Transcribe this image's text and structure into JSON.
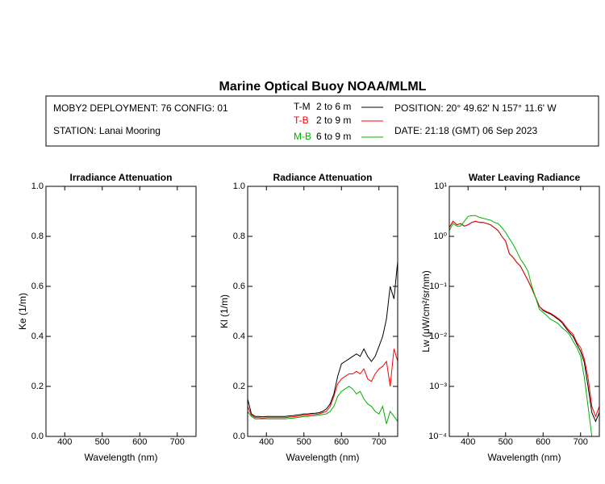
{
  "title": "Marine Optical Buoy NOAA/MLML",
  "info": {
    "deployment": "MOBY2 DEPLOYMENT: 76 CONFIG: 01",
    "station": "STATION: Lanai Mooring",
    "position": "POSITION: 20° 49.62' N   157° 11.6' W",
    "date": "DATE: 21:18 (GMT) 06 Sep 2023"
  },
  "legend": [
    {
      "label": "T-M",
      "text": "2 to 6 m",
      "color": "#000000"
    },
    {
      "label": "T-B",
      "text": "2 to 9 m",
      "color": "#ff0000"
    },
    {
      "label": "M-B",
      "text": "6 to 9 m",
      "color": "#00b000"
    }
  ],
  "chart_data": [
    {
      "type": "line",
      "title": "Irradiance Attenuation",
      "x_label": "Wavelength (nm)",
      "y_label": "Ke  (1/m)",
      "xlim": [
        350,
        750
      ],
      "xticks": [
        400,
        500,
        600,
        700
      ],
      "ylim": [
        0,
        1
      ],
      "yticks": [
        {
          "value": 0,
          "label": "0.0"
        },
        0.2,
        0.4,
        0.6,
        0.8,
        {
          "value": 1,
          "label": "1.0"
        }
      ],
      "x": [],
      "series": []
    },
    {
      "type": "line",
      "title": "Radiance Attenuation",
      "x_label": "Wavelength (nm)",
      "y_label": "Kl  (1/m)",
      "xlim": [
        350,
        750
      ],
      "xticks": [
        400,
        500,
        600,
        700
      ],
      "ylim": [
        0,
        1
      ],
      "yticks": [
        {
          "value": 0,
          "label": "0.0"
        },
        0.2,
        0.4,
        0.6,
        0.8,
        {
          "value": 1,
          "label": "1.0"
        }
      ],
      "x": [
        350,
        360,
        370,
        380,
        390,
        400,
        410,
        420,
        430,
        440,
        450,
        460,
        470,
        480,
        490,
        500,
        510,
        520,
        530,
        540,
        550,
        560,
        570,
        580,
        590,
        600,
        610,
        620,
        630,
        640,
        650,
        660,
        670,
        680,
        690,
        700,
        710,
        720,
        730,
        740,
        750
      ],
      "series": [
        {
          "color": "#000000",
          "values": [
            0.15,
            0.09,
            0.08,
            0.08,
            0.078,
            0.08,
            0.08,
            0.08,
            0.08,
            0.08,
            0.08,
            0.082,
            0.083,
            0.085,
            0.087,
            0.09,
            0.09,
            0.092,
            0.093,
            0.095,
            0.1,
            0.11,
            0.13,
            0.17,
            0.24,
            0.29,
            0.3,
            0.31,
            0.32,
            0.33,
            0.32,
            0.35,
            0.32,
            0.3,
            0.32,
            0.36,
            0.4,
            0.47,
            0.6,
            0.55,
            0.7
          ]
        },
        {
          "color": "#ff0000",
          "values": [
            0.12,
            0.085,
            0.075,
            0.075,
            0.073,
            0.075,
            0.075,
            0.075,
            0.075,
            0.075,
            0.075,
            0.077,
            0.078,
            0.08,
            0.082,
            0.085,
            0.085,
            0.087,
            0.088,
            0.09,
            0.095,
            0.1,
            0.12,
            0.16,
            0.21,
            0.23,
            0.24,
            0.25,
            0.25,
            0.26,
            0.25,
            0.27,
            0.23,
            0.22,
            0.25,
            0.27,
            0.28,
            0.3,
            0.2,
            0.35,
            0.3
          ]
        },
        {
          "color": "#00b000",
          "values": [
            0.1,
            0.08,
            0.07,
            0.07,
            0.07,
            0.07,
            0.07,
            0.07,
            0.07,
            0.07,
            0.07,
            0.072,
            0.073,
            0.075,
            0.077,
            0.08,
            0.08,
            0.082,
            0.083,
            0.085,
            0.088,
            0.09,
            0.1,
            0.12,
            0.16,
            0.18,
            0.19,
            0.2,
            0.19,
            0.17,
            0.18,
            0.15,
            0.13,
            0.12,
            0.1,
            0.09,
            0.12,
            0.05,
            0.1,
            0.08,
            0.06
          ]
        }
      ]
    },
    {
      "type": "line",
      "title": "Water Leaving Radiance",
      "x_label": "Wavelength (nm)",
      "y_label": "Lw  (μW/cm²/sr/nm)",
      "log_y": true,
      "xlim": [
        350,
        750
      ],
      "xticks": [
        400,
        500,
        600,
        700
      ],
      "ylim": [
        0.0001,
        10
      ],
      "yticks": [
        {
          "value": 0.0001,
          "label": "10⁻⁴"
        },
        {
          "value": 0.001,
          "label": "10⁻³"
        },
        {
          "value": 0.01,
          "label": "10⁻²"
        },
        {
          "value": 0.1,
          "label": "10⁻¹"
        },
        {
          "value": 1,
          "label": "10⁰"
        },
        {
          "value": 10,
          "label": "10¹"
        }
      ],
      "x": [
        350,
        360,
        370,
        380,
        390,
        400,
        410,
        420,
        430,
        440,
        450,
        460,
        470,
        480,
        490,
        500,
        510,
        520,
        530,
        540,
        550,
        560,
        570,
        580,
        590,
        600,
        610,
        620,
        630,
        640,
        650,
        660,
        670,
        680,
        690,
        700,
        710,
        720,
        730,
        740,
        750
      ],
      "series": [
        {
          "color": "#000000",
          "values": [
            1.5,
            2,
            1.7,
            1.8,
            1.6,
            1.7,
            1.9,
            2.0,
            1.9,
            1.9,
            1.8,
            1.7,
            1.5,
            1.3,
            1.0,
            0.8,
            0.45,
            0.38,
            0.3,
            0.25,
            0.18,
            0.13,
            0.09,
            0.06,
            0.04,
            0.033,
            0.03,
            0.028,
            0.025,
            0.022,
            0.019,
            0.015,
            0.012,
            0.01,
            0.007,
            0.005,
            0.003,
            0.001,
            0.0003,
            0.0002,
            0.0003
          ]
        },
        {
          "color": "#ff0000",
          "values": [
            1.5,
            2,
            1.7,
            1.8,
            1.6,
            1.7,
            1.9,
            2.0,
            1.9,
            1.9,
            1.8,
            1.7,
            1.5,
            1.3,
            1.0,
            0.8,
            0.45,
            0.38,
            0.3,
            0.25,
            0.18,
            0.13,
            0.09,
            0.06,
            0.04,
            0.034,
            0.031,
            0.029,
            0.026,
            0.023,
            0.02,
            0.016,
            0.013,
            0.011,
            0.0075,
            0.006,
            0.0035,
            0.0015,
            0.0004,
            0.00025,
            0.0004
          ]
        },
        {
          "color": "#00b000",
          "values": [
            1.3,
            1.8,
            1.6,
            1.6,
            2.0,
            2.5,
            2.6,
            2.6,
            2.4,
            2.3,
            2.2,
            2.1,
            1.9,
            1.8,
            1.5,
            1.2,
            0.9,
            0.7,
            0.5,
            0.35,
            0.27,
            0.2,
            0.1,
            0.06,
            0.035,
            0.03,
            0.026,
            0.022,
            0.02,
            0.018,
            0.015,
            0.013,
            0.011,
            0.008,
            0.006,
            0.004,
            0.0015,
            0.0004,
            0.0001,
            null,
            null
          ]
        }
      ]
    }
  ]
}
